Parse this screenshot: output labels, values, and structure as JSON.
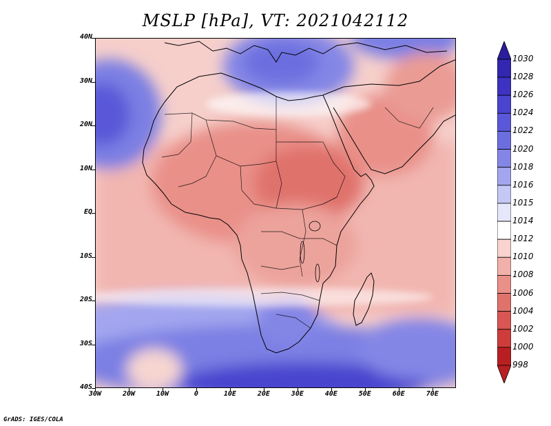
{
  "title": "MSLP [hPa], VT: 2021042112",
  "credit": "GrADS: IGES/COLA",
  "latitude_labels": [
    "40N",
    "30N",
    "20N",
    "10N",
    "EQ",
    "10S",
    "20S",
    "30S",
    "40S"
  ],
  "longitude_labels": [
    "30W",
    "20W",
    "10W",
    "0",
    "10E",
    "20E",
    "30E",
    "40E",
    "50E",
    "60E",
    "70E"
  ],
  "colorbar": {
    "unit": "hPa",
    "levels": [
      "1030",
      "1028",
      "1026",
      "1024",
      "1022",
      "1020",
      "1018",
      "1016",
      "1015",
      "1014",
      "1012",
      "1010",
      "1008",
      "1006",
      "1004",
      "1002",
      "1000",
      "998"
    ],
    "colors": [
      "#2a1e9e",
      "#3326b0",
      "#3d32c2",
      "#4a44cf",
      "#5a58d8",
      "#6c6edf",
      "#8486e6",
      "#a3a6ee",
      "#c5c8f5",
      "#e6e7fb",
      "#ffffff",
      "#f8d3cf",
      "#f1b0aa",
      "#e99089",
      "#e0726c",
      "#d85653",
      "#cf3c3c",
      "#b81f22"
    ]
  }
}
